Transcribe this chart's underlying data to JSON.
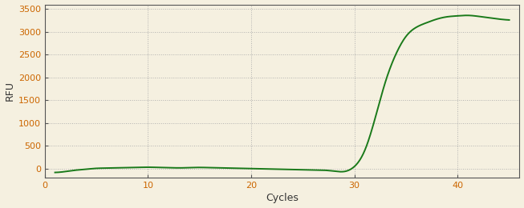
{
  "title": "",
  "xlabel": "Cycles",
  "ylabel": "RFU",
  "xlim": [
    0,
    46
  ],
  "ylim": [
    -200,
    3600
  ],
  "yticks": [
    0,
    500,
    1000,
    1500,
    2000,
    2500,
    3000,
    3500
  ],
  "xticks": [
    0,
    10,
    20,
    30,
    40
  ],
  "line_color": "#1a7a1a",
  "line_width": 1.4,
  "background_color": "#f5f0e0",
  "plot_bg_color": "#f5f0e0",
  "grid_color": "#aaaaaa",
  "tick_label_color": "#cc6600",
  "axis_label_color": "#333333",
  "spine_color": "#555555",
  "x_data": [
    1,
    2,
    3,
    4,
    5,
    6,
    7,
    8,
    9,
    10,
    11,
    12,
    13,
    14,
    15,
    16,
    17,
    18,
    19,
    20,
    21,
    22,
    23,
    24,
    25,
    26,
    27,
    28,
    29,
    30,
    31,
    32,
    33,
    34,
    35,
    36,
    37,
    38,
    39,
    40,
    41,
    42,
    43,
    44,
    45
  ],
  "y_data": [
    -80,
    -60,
    -30,
    -10,
    10,
    15,
    20,
    25,
    30,
    35,
    30,
    25,
    20,
    25,
    30,
    25,
    20,
    15,
    10,
    5,
    0,
    -5,
    -10,
    -15,
    -20,
    -25,
    -30,
    -50,
    -60,
    50,
    400,
    1100,
    1900,
    2500,
    2900,
    3100,
    3200,
    3280,
    3330,
    3350,
    3360,
    3340,
    3310,
    3280,
    3260
  ],
  "figsize": [
    6.53,
    2.6
  ],
  "dpi": 100
}
